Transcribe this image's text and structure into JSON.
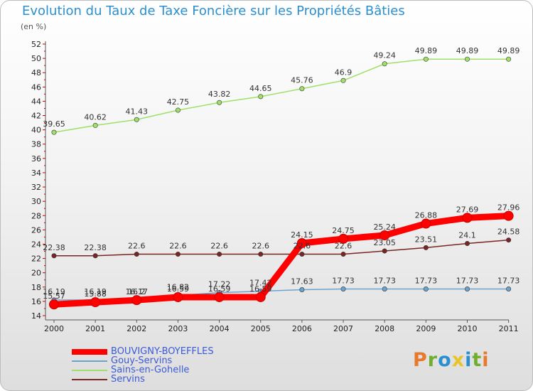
{
  "title": "Evolution du Taux de Taxe Foncière sur les Propriétés Bâties",
  "unit": "(en %)",
  "logo": {
    "text": "Proxiti",
    "colors": [
      "#e8782a",
      "#6fae2e",
      "#2a8fd0",
      "#e8c32a",
      "#2a8fd0",
      "#6fae2e",
      "#e8782a"
    ]
  },
  "chart_data": {
    "type": "line",
    "title": "Evolution du Taux de Taxe Foncière sur les Propriétés Bâties",
    "ylabel": "(en %)",
    "categories": [
      "2000",
      "2001",
      "2002",
      "2003",
      "2004",
      "2005",
      "2006",
      "2007",
      "2008",
      "2009",
      "2010",
      "2011"
    ],
    "ylim": [
      14,
      52
    ],
    "yticks": [
      14,
      16,
      18,
      20,
      22,
      24,
      26,
      28,
      30,
      32,
      34,
      36,
      38,
      40,
      42,
      44,
      46,
      48,
      50,
      52
    ],
    "grid": false,
    "legend": "bottom-left",
    "series": [
      {
        "name": "BOUVIGNY-BOYEFFLES",
        "color": "#ff0000",
        "width": 9,
        "values": [
          15.57,
          15.88,
          16.17,
          16.59,
          16.59,
          16.59,
          24.15,
          24.75,
          25.24,
          26.88,
          27.69,
          27.96
        ],
        "labels": [
          "15.57",
          "15.88",
          "16.17",
          "16.59",
          "16.59",
          "16.59",
          "24.15",
          "24.75",
          "25.24",
          "26.88",
          "27.69",
          "27.96"
        ]
      },
      {
        "name": "Gouy-Servins",
        "color": "#6ba3cf",
        "width": 1.5,
        "values": [
          16.19,
          16.19,
          16.2,
          16.82,
          17.22,
          17.42,
          17.63,
          17.73,
          17.73,
          17.73,
          17.73,
          17.73
        ],
        "labels": [
          "16.19",
          "16.19",
          "16.2",
          "16.82",
          "17.22",
          "17.42",
          "17.63",
          "17.73",
          "17.73",
          "17.73",
          "17.73",
          "17.73"
        ]
      },
      {
        "name": "Sains-en-Gohelle",
        "color": "#9fe06a",
        "width": 1.5,
        "values": [
          39.65,
          40.62,
          41.43,
          42.75,
          43.82,
          44.65,
          45.76,
          46.9,
          49.24,
          49.89,
          49.89,
          49.89
        ],
        "labels": [
          "39.65",
          "40.62",
          "41.43",
          "42.75",
          "43.82",
          "44.65",
          "45.76",
          "46.9",
          "49.24",
          "49.89",
          "49.89",
          "49.89"
        ]
      },
      {
        "name": "Servins",
        "color": "#7a2424",
        "width": 1.5,
        "values": [
          22.38,
          22.38,
          22.6,
          22.6,
          22.6,
          22.6,
          22.6,
          22.6,
          23.05,
          23.51,
          24.1,
          24.58
        ],
        "labels": [
          "22.38",
          "22.38",
          "22.6",
          "22.6",
          "22.6",
          "22.6",
          "22.6",
          "22.6",
          "23.05",
          "23.51",
          "24.1",
          "24.58"
        ]
      }
    ]
  }
}
